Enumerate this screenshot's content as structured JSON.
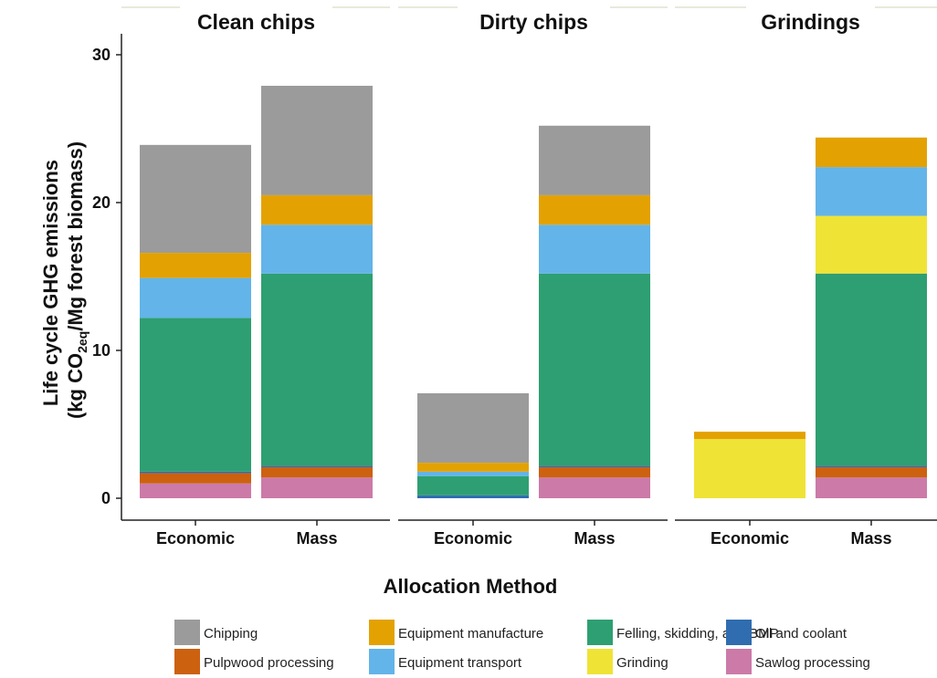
{
  "chart_data": {
    "type": "bar",
    "stacked": true,
    "facets": [
      "Clean chips",
      "Dirty chips",
      "Grindings"
    ],
    "categories": [
      "Economic",
      "Mass"
    ],
    "xlabel": "Allocation Method",
    "ylabel_line1": "Life cycle GHG emissions",
    "ylabel_line2_prefix": "(kg CO",
    "ylabel_line2_sub": "2eq",
    "ylabel_line2_suffix": "/Mg forest biomass)",
    "ylim": [
      0,
      31
    ],
    "yticks": [
      0,
      10,
      20,
      30
    ],
    "stack_order": [
      "Sawlog processing",
      "Pulpwood processing",
      "Oil and coolant",
      "Felling, skidding, and BMP",
      "Grinding",
      "Equipment transport",
      "Equipment manufacture",
      "Chipping"
    ],
    "legend": [
      "Chipping",
      "Pulpwood processing",
      "Equipment manufacture",
      "Equipment transport",
      "Felling, skidding, and BMP",
      "Grinding",
      "Oil and coolant",
      "Sawlog processing"
    ],
    "legend_placement": "bottom",
    "colors": {
      "Chipping": "#9b9b9b",
      "Equipment manufacture": "#e3a202",
      "Equipment transport": "#63b4e9",
      "Felling, skidding, and BMP": "#2e9f72",
      "Grinding": "#efe336",
      "Oil and coolant": "#2f6db0",
      "Pulpwood processing": "#cc6110",
      "Sawlog processing": "#cc7aa8"
    },
    "series": [
      {
        "name": "Sawlog processing",
        "values": {
          "Clean chips": [
            1.0,
            1.4
          ],
          "Dirty chips": [
            0.0,
            1.4
          ],
          "Grindings": [
            0.0,
            1.4
          ]
        }
      },
      {
        "name": "Pulpwood processing",
        "values": {
          "Clean chips": [
            0.7,
            0.7
          ],
          "Dirty chips": [
            0.0,
            0.7
          ],
          "Grindings": [
            0.0,
            0.7
          ]
        }
      },
      {
        "name": "Oil and coolant",
        "values": {
          "Clean chips": [
            0.1,
            0.1
          ],
          "Dirty chips": [
            0.2,
            0.1
          ],
          "Grindings": [
            0.0,
            0.1
          ]
        }
      },
      {
        "name": "Felling, skidding, and BMP",
        "values": {
          "Clean chips": [
            10.4,
            13.0
          ],
          "Dirty chips": [
            1.3,
            13.0
          ],
          "Grindings": [
            0.0,
            13.0
          ]
        }
      },
      {
        "name": "Grinding",
        "values": {
          "Clean chips": [
            0.0,
            0.0
          ],
          "Dirty chips": [
            0.0,
            0.0
          ],
          "Grindings": [
            4.0,
            3.9
          ]
        }
      },
      {
        "name": "Equipment transport",
        "values": {
          "Clean chips": [
            2.7,
            3.3
          ],
          "Dirty chips": [
            0.3,
            3.3
          ],
          "Grindings": [
            0.0,
            3.3
          ]
        }
      },
      {
        "name": "Equipment manufacture",
        "values": {
          "Clean chips": [
            1.7,
            2.0
          ],
          "Dirty chips": [
            0.6,
            2.0
          ],
          "Grindings": [
            0.5,
            2.0
          ]
        }
      },
      {
        "name": "Chipping",
        "values": {
          "Clean chips": [
            7.3,
            7.4
          ],
          "Dirty chips": [
            4.7,
            4.7
          ],
          "Grindings": [
            0.0,
            0.0
          ]
        }
      }
    ],
    "totals": {
      "Clean chips": [
        23.9,
        27.9
      ],
      "Dirty chips": [
        7.1,
        25.2
      ],
      "Grindings": [
        4.5,
        24.4
      ]
    }
  }
}
